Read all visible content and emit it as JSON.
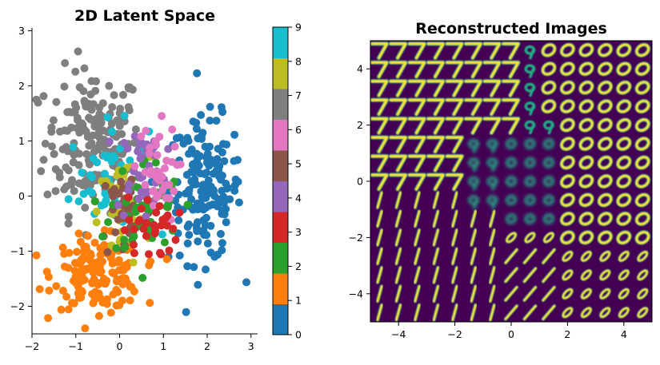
{
  "chart_data": [
    {
      "type": "scatter",
      "title": "2D Latent Space",
      "xlabel": "",
      "ylabel": "",
      "xlim": [
        -2.0,
        3.15
      ],
      "ylim": [
        -2.5,
        3.05
      ],
      "xticks": [
        -2,
        -1,
        0,
        1,
        2,
        3
      ],
      "yticks": [
        -2,
        -1,
        0,
        1,
        2,
        3
      ],
      "xtick_labels": [
        "−2",
        "−1",
        "0",
        "1",
        "2",
        "3"
      ],
      "ytick_labels": [
        "−2",
        "−1",
        "0",
        "1",
        "2",
        "3"
      ],
      "colormap": "tab10",
      "colors": [
        "#1f77b4",
        "#ff7f0e",
        "#2ca02c",
        "#d62728",
        "#9467bd",
        "#8c564b",
        "#e377c2",
        "#7f7f7f",
        "#bcbd22",
        "#17becf"
      ],
      "colorbar": {
        "ticks": [
          0,
          1,
          2,
          3,
          4,
          5,
          6,
          7,
          8,
          9
        ],
        "tick_labels": [
          "0",
          "1",
          "2",
          "3",
          "4",
          "5",
          "6",
          "7",
          "8",
          "9"
        ],
        "range": [
          0,
          9
        ]
      },
      "clusters": [
        {
          "digit": 0,
          "center": [
            1.95,
            0.1
          ],
          "spread": [
            0.42,
            0.65
          ],
          "count": 170
        },
        {
          "digit": 1,
          "center": [
            -0.5,
            -1.4
          ],
          "spread": [
            0.5,
            0.32
          ],
          "count": 160
        },
        {
          "digit": 2,
          "center": [
            0.6,
            -0.2
          ],
          "spread": [
            0.4,
            0.45
          ],
          "count": 55
        },
        {
          "digit": 3,
          "center": [
            0.7,
            -0.6
          ],
          "spread": [
            0.3,
            0.3
          ],
          "count": 30
        },
        {
          "digit": 4,
          "center": [
            0.5,
            0.5
          ],
          "spread": [
            0.28,
            0.45
          ],
          "count": 40
        },
        {
          "digit": 5,
          "center": [
            0.15,
            -0.3
          ],
          "spread": [
            0.3,
            0.45
          ],
          "count": 40
        },
        {
          "digit": 6,
          "center": [
            0.8,
            0.4
          ],
          "spread": [
            0.25,
            0.45
          ],
          "count": 40
        },
        {
          "digit": 7,
          "center": [
            -0.6,
            1.0
          ],
          "spread": [
            0.55,
            0.65
          ],
          "count": 190
        },
        {
          "digit": 8,
          "center": [
            0.1,
            -0.3
          ],
          "spread": [
            0.3,
            0.5
          ],
          "count": 45
        },
        {
          "digit": 9,
          "center": [
            -0.25,
            0.3
          ],
          "spread": [
            0.45,
            0.5
          ],
          "count": 50
        }
      ]
    },
    {
      "type": "heatmap",
      "title": "Reconstructed Images",
      "xlabel": "",
      "ylabel": "",
      "xlim": [
        -5,
        5
      ],
      "ylim": [
        -5,
        5
      ],
      "xticks": [
        -4,
        -2,
        0,
        2,
        4
      ],
      "yticks": [
        -4,
        -2,
        0,
        2,
        4
      ],
      "xtick_labels": [
        "−4",
        "−2",
        "0",
        "2",
        "4"
      ],
      "ytick_labels": [
        "−4",
        "−2",
        "0",
        "2",
        "4"
      ],
      "grid_size": 15,
      "background": "#440154",
      "stroke_colors": [
        "#22a884",
        "#fde725"
      ],
      "cell_digits": "Top-left region shows '7', bottom-left '1', right side '0'"
    }
  ]
}
